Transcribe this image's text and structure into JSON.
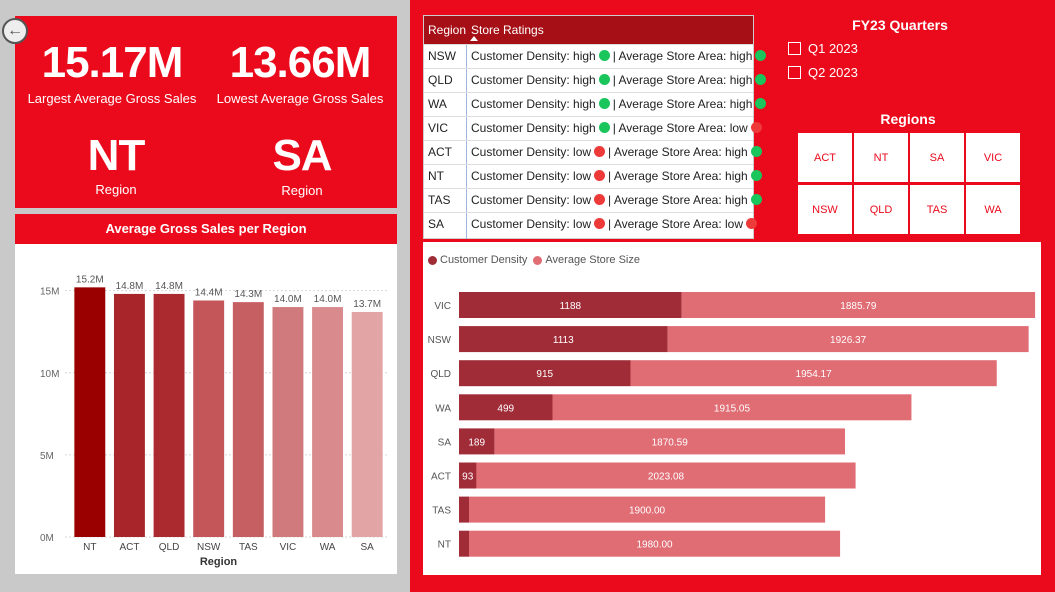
{
  "back_button_icon": "back-arrow-icon",
  "kpis": {
    "largest_value": "15.17M",
    "largest_label": "Largest Average Gross Sales",
    "lowest_value": "13.66M",
    "lowest_label": "Lowest Average Gross Sales",
    "largest_region": "NT",
    "largest_region_label": "Region",
    "lowest_region": "SA",
    "lowest_region_label": "Region"
  },
  "ratings_table": {
    "col_region": "Region",
    "col_ratings": "Store Ratings",
    "sort_icon": "sort-up-icon",
    "rows": [
      {
        "region": "NSW",
        "density": "Customer Density: high",
        "density_level": "high",
        "area": "| Average Store Area: high",
        "area_level": "high"
      },
      {
        "region": "QLD",
        "density": "Customer Density: high",
        "density_level": "high",
        "area": "| Average Store Area: high",
        "area_level": "high"
      },
      {
        "region": "WA",
        "density": "Customer Density: high",
        "density_level": "high",
        "area": "| Average Store Area: high",
        "area_level": "high"
      },
      {
        "region": "VIC",
        "density": "Customer Density: high",
        "density_level": "high",
        "area": "| Average Store Area: low",
        "area_level": "low"
      },
      {
        "region": "ACT",
        "density": "Customer Density: low",
        "density_level": "low",
        "area": "| Average Store Area: high",
        "area_level": "high"
      },
      {
        "region": "NT",
        "density": "Customer Density: low",
        "density_level": "low",
        "area": "| Average Store Area: high",
        "area_level": "high"
      },
      {
        "region": "TAS",
        "density": "Customer Density: low",
        "density_level": "low",
        "area": "| Average Store Area: high",
        "area_level": "high"
      },
      {
        "region": "SA",
        "density": "Customer Density: low",
        "density_level": "low",
        "area": "| Average Store Area: low",
        "area_level": "low"
      }
    ]
  },
  "quarters_slicer": {
    "title": "FY23 Quarters",
    "options": [
      "Q1 2023",
      "Q2 2023"
    ]
  },
  "regions_slicer": {
    "title": "Regions",
    "tiles": [
      "ACT",
      "NT",
      "SA",
      "VIC",
      "NSW",
      "QLD",
      "TAS",
      "WA"
    ]
  },
  "colors": {
    "brand_red": "#ea0a1c",
    "header_dark_red": "#a50f15",
    "status_high": "#1ac65c",
    "status_low": "#ee3a38",
    "density_color": "#a02c38",
    "store_size_color": "#e06c74"
  },
  "chart_data": [
    {
      "type": "bar",
      "title": "Average Gross Sales per Region",
      "xlabel": "Region",
      "ylabel": "",
      "categories": [
        "NT",
        "ACT",
        "QLD",
        "NSW",
        "TAS",
        "VIC",
        "WA",
        "SA"
      ],
      "values": [
        15.2,
        14.8,
        14.8,
        14.4,
        14.3,
        14.0,
        14.0,
        13.7
      ],
      "data_labels": [
        "15.2M",
        "14.8M",
        "14.8M",
        "14.4M",
        "14.3M",
        "14.0M",
        "14.0M",
        "13.7M"
      ],
      "bar_colors": [
        "#9b0000",
        "#a8252a",
        "#ab2a2f",
        "#c45558",
        "#c65f62",
        "#d07a7d",
        "#d88a8d",
        "#e3a4a6"
      ],
      "yticks": [
        0,
        5,
        10,
        15
      ],
      "ytick_labels": [
        "0M",
        "5M",
        "10M",
        "15M"
      ],
      "ylim": [
        0,
        16.5
      ],
      "grid": true
    },
    {
      "type": "bar",
      "orientation": "horizontal",
      "stacked": true,
      "title": "",
      "legend": [
        "Customer Density",
        "Average Store Size"
      ],
      "categories": [
        "VIC",
        "NSW",
        "QLD",
        "WA",
        "SA",
        "ACT",
        "TAS",
        "NT"
      ],
      "series": [
        {
          "name": "Customer Density",
          "values": [
            1188,
            1113,
            915,
            499,
            189,
            93,
            0,
            0
          ],
          "labels": [
            "1188",
            "1113",
            "915",
            "499",
            "189",
            "93",
            "",
            ""
          ]
        },
        {
          "name": "Average Store Size",
          "values": [
            1885.79,
            1926.37,
            1954.17,
            1915.05,
            1870.59,
            2023.08,
            1900.0,
            1980.0
          ],
          "labels": [
            "1885.79",
            "1926.37",
            "1954.17",
            "1915.05",
            "1870.59",
            "2023.08",
            "1900.00",
            "1980.00"
          ]
        }
      ],
      "xlim": [
        0,
        3100
      ]
    }
  ]
}
